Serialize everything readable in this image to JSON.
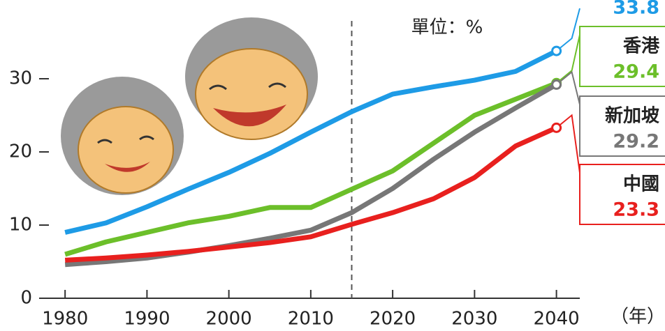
{
  "chart_data": {
    "type": "line",
    "annotations": [
      "單位：%",
      "（年）"
    ],
    "reference_x": 2015,
    "x": [
      1980,
      1985,
      1990,
      1995,
      2000,
      2005,
      2010,
      2015,
      2020,
      2025,
      2030,
      2035,
      2040
    ],
    "series": [
      {
        "color": "#1e9be6",
        "values": [
          9.0,
          10.3,
          12.5,
          14.9,
          17.2,
          19.8,
          22.7,
          25.5,
          27.9,
          28.9,
          29.8,
          31.0,
          33.8
        ],
        "value_labels": [
          "33.8"
        ]
      },
      {
        "name": "香港",
        "color": "#6cbf2a",
        "values": [
          6.0,
          7.7,
          9.0,
          10.3,
          11.2,
          12.4,
          12.4,
          14.9,
          17.4,
          21.2,
          25.0,
          27.2,
          29.4
        ],
        "value_labels": [
          "29.4"
        ]
      },
      {
        "name": "新加坡",
        "color": "#777777",
        "values": [
          4.6,
          5.0,
          5.5,
          6.3,
          7.2,
          8.2,
          9.3,
          11.7,
          15.0,
          19.0,
          22.7,
          26.0,
          29.2
        ],
        "value_labels": [
          "29.2"
        ]
      },
      {
        "name": "中國",
        "color": "#e8201e",
        "values": [
          5.2,
          5.5,
          5.9,
          6.4,
          7.0,
          7.6,
          8.4,
          10.1,
          11.7,
          13.6,
          16.5,
          20.8,
          23.3
        ],
        "value_labels": [
          "23.3"
        ]
      }
    ],
    "xlim": [
      1977,
      2053
    ],
    "xticks": [
      1980,
      1990,
      2000,
      2010,
      2020,
      2030,
      2040
    ],
    "ylim": [
      0,
      40
    ],
    "yticks": [
      0,
      10,
      20,
      30
    ]
  }
}
